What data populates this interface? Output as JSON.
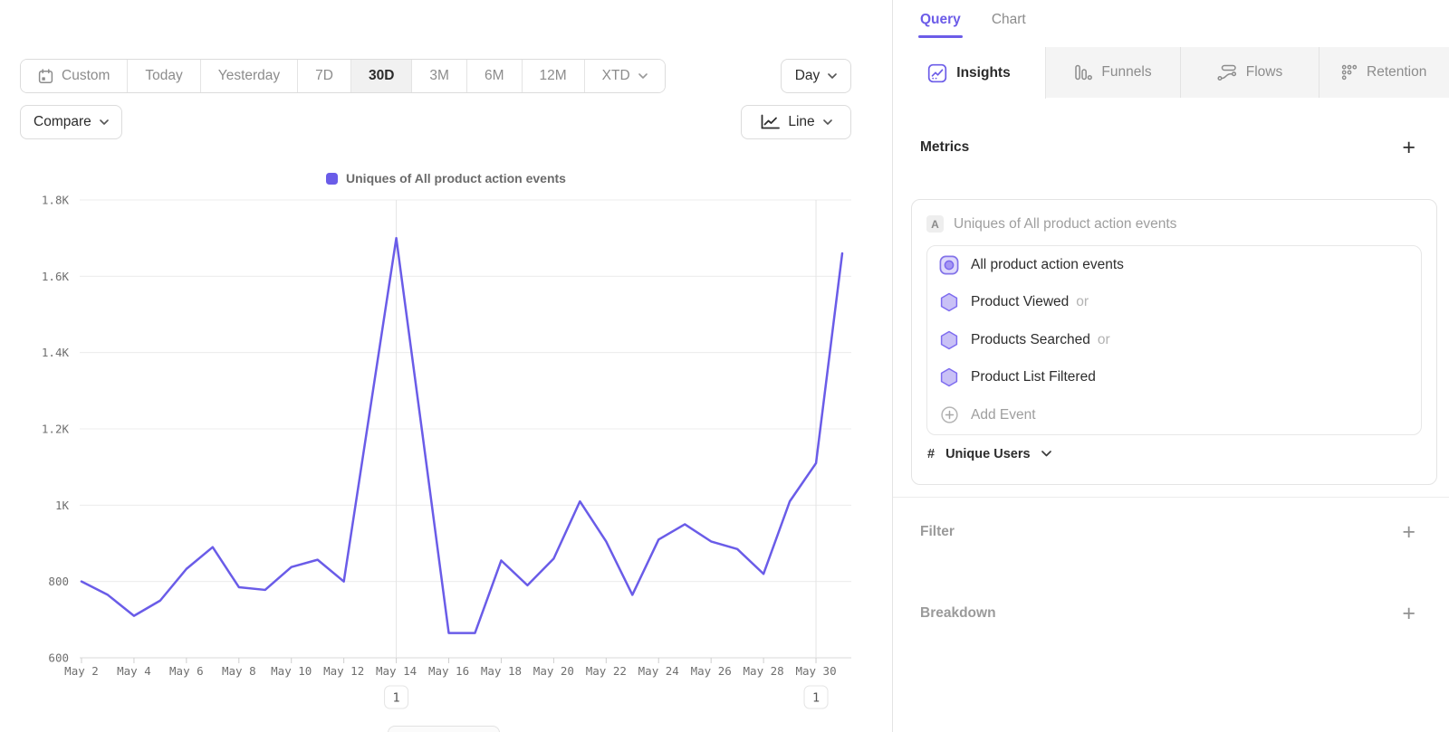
{
  "controls": {
    "date_range": {
      "options": [
        "Custom",
        "Today",
        "Yesterday",
        "7D",
        "30D",
        "3M",
        "6M",
        "12M",
        "XTD"
      ],
      "selected": "30D"
    },
    "granularity": "Day",
    "compare": "Compare",
    "chart_type": "Line"
  },
  "chart_data": {
    "type": "line",
    "title": "Uniques of All product action events",
    "x": [
      "May 2",
      "May 3",
      "May 4",
      "May 5",
      "May 6",
      "May 7",
      "May 8",
      "May 9",
      "May 10",
      "May 11",
      "May 12",
      "May 13",
      "May 14",
      "May 15",
      "May 16",
      "May 17",
      "May 18",
      "May 19",
      "May 20",
      "May 21",
      "May 22",
      "May 23",
      "May 24",
      "May 25",
      "May 26",
      "May 27",
      "May 28",
      "May 29",
      "May 30",
      "May 31"
    ],
    "values": [
      800,
      765,
      710,
      750,
      833,
      890,
      785,
      778,
      838,
      857,
      800,
      1250,
      1700,
      1185,
      665,
      665,
      855,
      790,
      860,
      1010,
      905,
      765,
      910,
      950,
      905,
      885,
      820,
      1010,
      1110,
      1660
    ],
    "ylim": [
      600,
      1800
    ],
    "y_ticks": [
      {
        "value": 1800,
        "label": "1.8K"
      },
      {
        "value": 1600,
        "label": "1.6K"
      },
      {
        "value": 1400,
        "label": "1.4K"
      },
      {
        "value": 1200,
        "label": "1.2K"
      },
      {
        "value": 1000,
        "label": "1K"
      },
      {
        "value": 800,
        "label": "800"
      },
      {
        "value": 600,
        "label": "600"
      }
    ],
    "x_label_every": 2,
    "grid": true,
    "legend_position": "top-center",
    "line_color": "#6a5ce8",
    "annotations": [
      {
        "x": "May 14",
        "label": "1"
      },
      {
        "x": "May 30",
        "label": "1"
      }
    ]
  },
  "query_panel": {
    "tabs": [
      {
        "label": "Query",
        "active": true
      },
      {
        "label": "Chart",
        "active": false
      }
    ],
    "report_tabs": [
      {
        "label": "Insights",
        "icon": "insights-icon",
        "active": true
      },
      {
        "label": "Funnels",
        "icon": "funnels-icon",
        "active": false
      },
      {
        "label": "Flows",
        "icon": "flows-icon",
        "active": false
      },
      {
        "label": "Retention",
        "icon": "retention-icon",
        "active": false
      }
    ],
    "metrics_title": "Metrics",
    "plus_label": "+",
    "metric": {
      "badge": "A",
      "title": "Uniques of All product action events",
      "events": [
        {
          "label": "All product action events",
          "icon": "all-events-icon"
        },
        {
          "label": "Product Viewed",
          "suffix": "or",
          "icon": "hexagon-event-icon"
        },
        {
          "label": "Products Searched",
          "suffix": "or",
          "icon": "hexagon-event-icon"
        },
        {
          "label": "Product List Filtered",
          "icon": "hexagon-event-icon"
        }
      ],
      "add_event": "Add Event",
      "measure_prefix": "#",
      "measure": "Unique Users"
    },
    "sections": [
      {
        "label": "Filter",
        "plus": "+"
      },
      {
        "label": "Breakdown",
        "plus": "+"
      }
    ]
  },
  "colors": {
    "accent_purple": "#6c5ce8",
    "line_purple": "#6a5ce8",
    "selected_segment_bg": "#f1f1f1",
    "inactive_tab_bg": "#f4f4f4",
    "border": "#e4e4e4",
    "text_dark": "#2b2b2b",
    "text_gray": "#8c8c8c"
  }
}
